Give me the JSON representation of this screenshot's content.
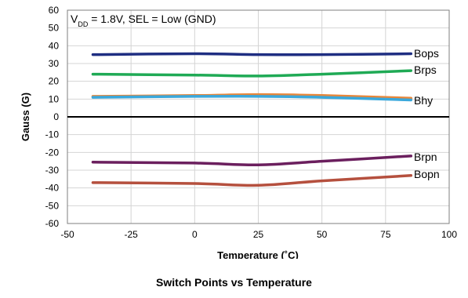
{
  "chart_data": {
    "type": "line",
    "title": "Switch Points vs Temperature",
    "xlabel": "Temperature (˚C)",
    "ylabel": "Gauss (G)",
    "xlim": [
      -50,
      100
    ],
    "ylim": [
      -60,
      60
    ],
    "x_ticks": [
      -50,
      -25,
      0,
      25,
      50,
      75,
      100
    ],
    "y_ticks": [
      60,
      50,
      40,
      30,
      20,
      10,
      0,
      -10,
      -20,
      -30,
      -40,
      -50,
      -60
    ],
    "grid": true,
    "annotation": {
      "prefix": "V",
      "subscript": "DD",
      "suffix": " = 1.8V, SEL = Low (GND)"
    },
    "x": [
      -40,
      0,
      25,
      50,
      85
    ],
    "series": [
      {
        "name": "Bops",
        "color": "#1f2e82",
        "values": [
          35,
          35.5,
          35,
          35,
          35.5
        ]
      },
      {
        "name": "Brps",
        "color": "#1faa55",
        "values": [
          24,
          23.5,
          23,
          24,
          26
        ]
      },
      {
        "name": "Bhy",
        "color": "#e8873a",
        "values": [
          11.5,
          12,
          12.5,
          12,
          10.5
        ]
      },
      {
        "name": "",
        "color": "#3aa8dc",
        "values": [
          11,
          11.5,
          11.5,
          11,
          9.5
        ]
      },
      {
        "name": "Brpn",
        "color": "#6b1f5e",
        "values": [
          -25.5,
          -26,
          -27,
          -25,
          -22
        ]
      },
      {
        "name": "Bopn",
        "color": "#b5503e",
        "values": [
          -37,
          -37.5,
          -38.5,
          -36,
          -33
        ]
      }
    ]
  }
}
